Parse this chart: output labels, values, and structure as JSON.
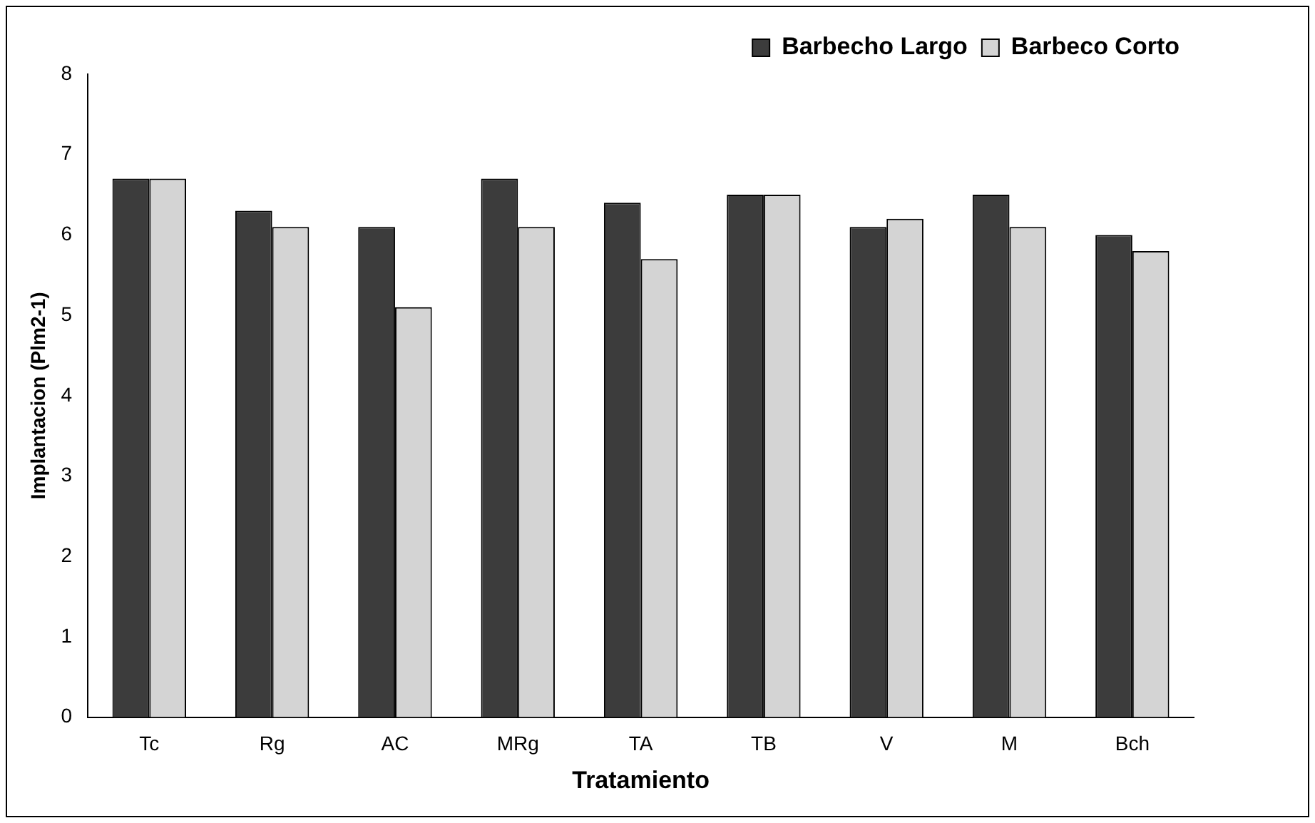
{
  "chart_data": {
    "type": "bar",
    "xlabel": "Tratamiento",
    "ylabel": "Implantacion (Plm2-1)",
    "categories": [
      "Tc",
      "Rg",
      "AC",
      "MRg",
      "TA",
      "TB",
      "V",
      "M",
      "Bch"
    ],
    "series": [
      {
        "name": "Barbecho Largo",
        "color": "#3c3c3c",
        "values": [
          6.7,
          6.3,
          6.1,
          6.7,
          6.4,
          6.5,
          6.1,
          6.5,
          6.0
        ]
      },
      {
        "name": "Barbeco Corto",
        "color": "#d4d4d4",
        "values": [
          6.7,
          6.1,
          5.1,
          6.1,
          5.7,
          6.5,
          6.2,
          6.1,
          5.8
        ]
      }
    ],
    "ylim": [
      0,
      8
    ],
    "yticks": [
      0,
      1,
      2,
      3,
      4,
      5,
      6,
      7,
      8
    ],
    "grid": false,
    "legend": "top right"
  }
}
